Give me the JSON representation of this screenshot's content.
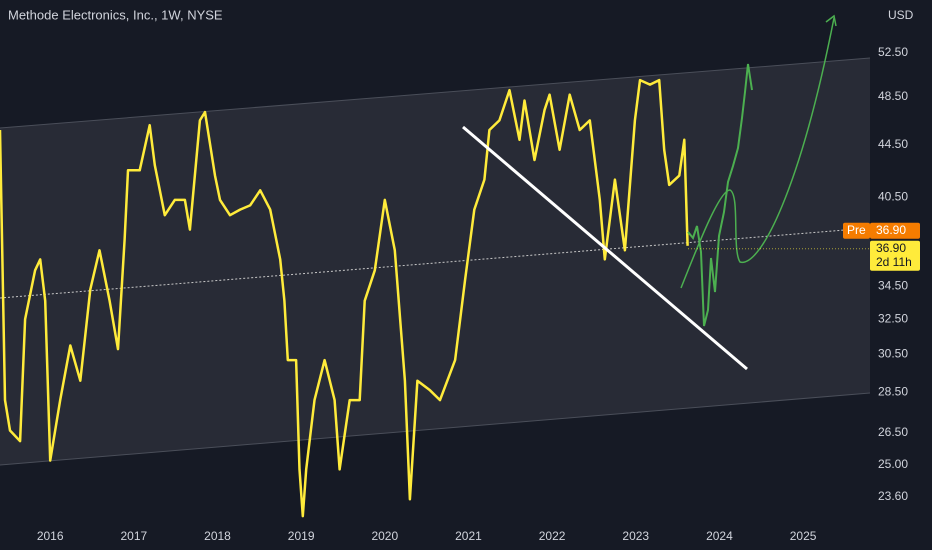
{
  "chart_data": {
    "type": "line",
    "title": "Methode Electronics, Inc., 1W, NYSE",
    "currency": "USD",
    "log_scale": true,
    "grid": false,
    "color": "#ffeb3b",
    "x": [
      2015.4,
      2015.46,
      2015.52,
      2015.64,
      2015.7,
      2015.82,
      2015.88,
      2015.94,
      2016.0,
      2016.12,
      2016.24,
      2016.36,
      2016.48,
      2016.59,
      2016.71,
      2016.81,
      2016.89,
      2016.93,
      2017.07,
      2017.19,
      2017.25,
      2017.37,
      2017.49,
      2017.61,
      2017.67,
      2017.79,
      2017.85,
      2017.97,
      2018.03,
      2018.15,
      2018.27,
      2018.39,
      2018.51,
      2018.63,
      2018.75,
      2018.8,
      2018.84,
      2018.94,
      2018.98,
      2019.02,
      2019.06,
      2019.16,
      2019.28,
      2019.4,
      2019.46,
      2019.58,
      2019.7,
      2019.76,
      2019.88,
      2020.0,
      2020.12,
      2020.24,
      2020.3,
      2020.39,
      2020.54,
      2020.66,
      2020.84,
      2020.96,
      2021.07,
      2021.19,
      2021.25,
      2021.37,
      2021.49,
      2021.61,
      2021.67,
      2021.79,
      2021.91,
      2021.97,
      2022.09,
      2022.21,
      2022.33,
      2022.45,
      2022.57,
      2022.63,
      2022.75,
      2022.87,
      2022.99,
      2023.05,
      2023.17,
      2023.28,
      2023.34,
      2023.4,
      2023.52,
      2023.58,
      2023.62
    ],
    "values": [
      45.7,
      28.1,
      26.6,
      26.1,
      32.5,
      35.5,
      36.2,
      33.6,
      25.2,
      28.1,
      31.0,
      29.1,
      34.3,
      36.8,
      33.6,
      30.8,
      37.5,
      42.5,
      42.5,
      46.1,
      42.9,
      39.2,
      40.3,
      40.3,
      38.2,
      46.5,
      47.2,
      42.1,
      40.3,
      39.2,
      39.6,
      39.9,
      41.0,
      39.6,
      36.2,
      33.6,
      30.2,
      30.2,
      24.8,
      22.8,
      24.8,
      28.1,
      30.2,
      28.1,
      24.8,
      28.1,
      28.1,
      33.6,
      35.5,
      40.3,
      36.8,
      29.1,
      23.5,
      29.1,
      28.6,
      28.1,
      30.2,
      34.9,
      39.6,
      41.8,
      45.7,
      46.5,
      49.1,
      44.9,
      48.2,
      43.3,
      47.4,
      48.7,
      44.1,
      48.7,
      45.7,
      46.5,
      40.3,
      36.2,
      41.8,
      36.8,
      46.5,
      50.0,
      49.6,
      50.0,
      44.1,
      41.4,
      42.1,
      44.9,
      37.1
    ],
    "xlim": [
      2015.4,
      2025.8
    ],
    "xticks": [
      2016,
      2017,
      2018,
      2019,
      2020,
      2021,
      2022,
      2023,
      2024,
      2025
    ],
    "ylim": [
      22.56,
      57.76
    ],
    "yticks": [
      {
        "value": 52.5,
        "label": "52.50"
      },
      {
        "value": 48.5,
        "label": "48.50"
      },
      {
        "value": 44.5,
        "label": "44.50"
      },
      {
        "value": 40.5,
        "label": "40.50"
      },
      {
        "value": 34.5,
        "label": "34.50"
      },
      {
        "value": 32.5,
        "label": "32.50"
      },
      {
        "value": 30.5,
        "label": "30.50"
      },
      {
        "value": 28.5,
        "label": "28.50"
      },
      {
        "value": 26.5,
        "label": "26.50"
      },
      {
        "value": 25,
        "label": "25.00"
      },
      {
        "value": 23.6,
        "label": "23.60"
      }
    ],
    "last_price": {
      "value": 36.9,
      "label": "36.90",
      "countdown": "2d 11h"
    },
    "premarket_price": {
      "tag": "Pre",
      "value": 36.9,
      "label": "36.90"
    }
  }
}
